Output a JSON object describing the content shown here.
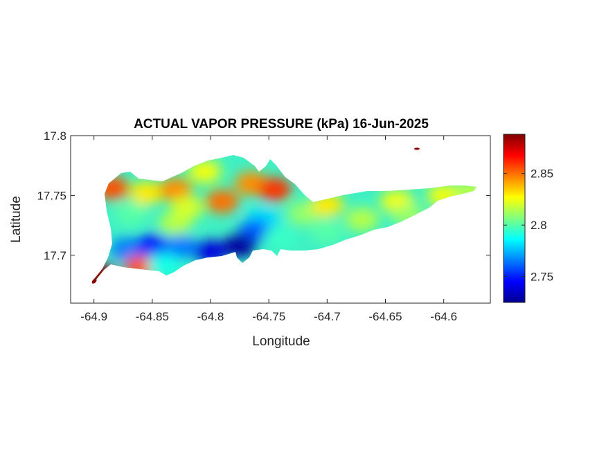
{
  "chart_data": {
    "type": "heatmap",
    "title": "ACTUAL VAPOR PRESSURE (kPa) 16-Jun-2025",
    "xlabel": "Longitude",
    "ylabel": "Latitude",
    "xlim": [
      -64.92,
      -64.56
    ],
    "ylim": [
      17.66,
      17.8
    ],
    "xticks": [
      -64.9,
      -64.85,
      -64.8,
      -64.75,
      -64.7,
      -64.65,
      -64.6
    ],
    "xtick_labels": [
      "-64.9",
      "-64.85",
      "-64.8",
      "-64.75",
      "-64.7",
      "-64.65",
      "-64.6"
    ],
    "yticks": [
      17.7,
      17.75,
      17.8
    ],
    "ytick_labels": [
      "17.7",
      "17.75",
      "17.8"
    ],
    "colormap": "jet",
    "clim": [
      2.725,
      2.888
    ],
    "colorbar_ticks": [
      2.75,
      2.8,
      2.85
    ],
    "colorbar_tick_labels": [
      "2.75",
      "2.8",
      "2.85"
    ],
    "grid": false,
    "regions": [
      {
        "lon": -64.884,
        "lat": 17.756,
        "value": 2.855
      },
      {
        "lon": -64.868,
        "lat": 17.735,
        "value": 2.8
      },
      {
        "lon": -64.855,
        "lat": 17.752,
        "value": 2.83
      },
      {
        "lon": -64.83,
        "lat": 17.755,
        "value": 2.845
      },
      {
        "lon": -64.83,
        "lat": 17.727,
        "value": 2.815
      },
      {
        "lon": -64.82,
        "lat": 17.74,
        "value": 2.82
      },
      {
        "lon": -64.805,
        "lat": 17.77,
        "value": 2.825
      },
      {
        "lon": -64.79,
        "lat": 17.745,
        "value": 2.85
      },
      {
        "lon": -64.765,
        "lat": 17.76,
        "value": 2.845
      },
      {
        "lon": -64.745,
        "lat": 17.755,
        "value": 2.86
      },
      {
        "lon": -64.755,
        "lat": 17.73,
        "value": 2.78
      },
      {
        "lon": -64.762,
        "lat": 17.72,
        "value": 2.76
      },
      {
        "lon": -64.872,
        "lat": 17.705,
        "value": 2.765
      },
      {
        "lon": -64.85,
        "lat": 17.708,
        "value": 2.75
      },
      {
        "lon": -64.825,
        "lat": 17.707,
        "value": 2.765
      },
      {
        "lon": -64.8,
        "lat": 17.703,
        "value": 2.74
      },
      {
        "lon": -64.775,
        "lat": 17.708,
        "value": 2.73
      },
      {
        "lon": -64.86,
        "lat": 17.69,
        "value": 2.855
      },
      {
        "lon": -64.84,
        "lat": 17.692,
        "value": 2.79
      },
      {
        "lon": -64.895,
        "lat": 17.684,
        "value": 2.885
      },
      {
        "lon": -64.74,
        "lat": 17.715,
        "value": 2.795
      },
      {
        "lon": -64.72,
        "lat": 17.735,
        "value": 2.81
      },
      {
        "lon": -64.7,
        "lat": 17.742,
        "value": 2.83
      },
      {
        "lon": -64.7,
        "lat": 17.72,
        "value": 2.8
      },
      {
        "lon": -64.67,
        "lat": 17.73,
        "value": 2.815
      },
      {
        "lon": -64.64,
        "lat": 17.745,
        "value": 2.825
      },
      {
        "lon": -64.63,
        "lat": 17.733,
        "value": 2.81
      },
      {
        "lon": -64.6,
        "lat": 17.75,
        "value": 2.825
      },
      {
        "lon": -64.575,
        "lat": 17.754,
        "value": 2.815
      },
      {
        "lon": -64.623,
        "lat": 17.789,
        "value": 2.885
      }
    ]
  }
}
